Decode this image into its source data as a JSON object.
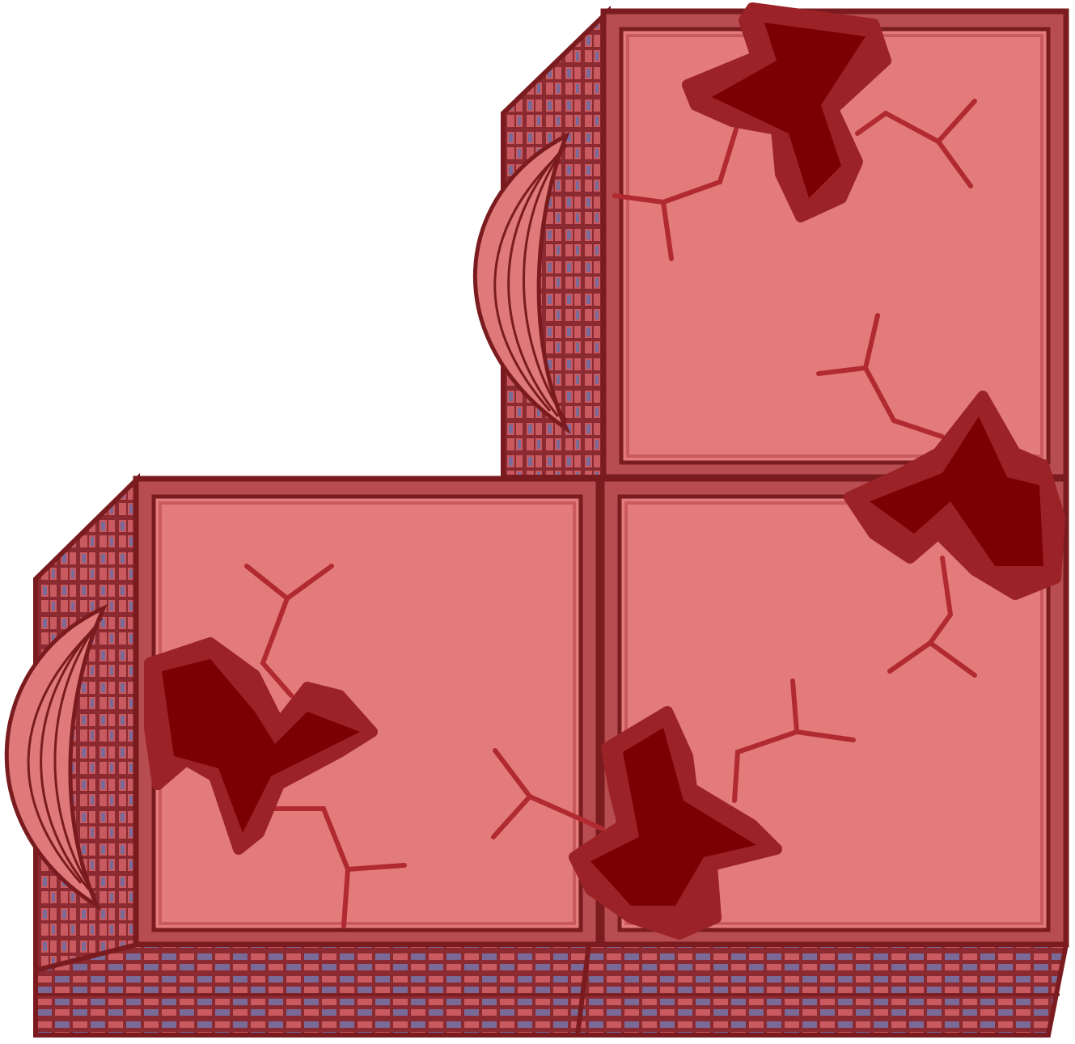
{
  "scene": {
    "subject": "l-shaped-block-cluster",
    "blocks": [
      {
        "id": "upper-right"
      },
      {
        "id": "lower-left"
      },
      {
        "id": "lower-right"
      }
    ]
  },
  "colors": {
    "outline": "#7a1c1f",
    "face": "#e37b7b",
    "face_border": "#c95a5e",
    "frame": "#b84d51",
    "brick_dark": "#8b2a31",
    "brick_mid": "#c85a60",
    "brick_gap": "#7a6a98",
    "splat_outer": "#9b2227",
    "splat_inner": "#7a0003",
    "crack": "#b02a30",
    "fin": "#e07a7a",
    "fin_line": "#7a1c1f"
  }
}
